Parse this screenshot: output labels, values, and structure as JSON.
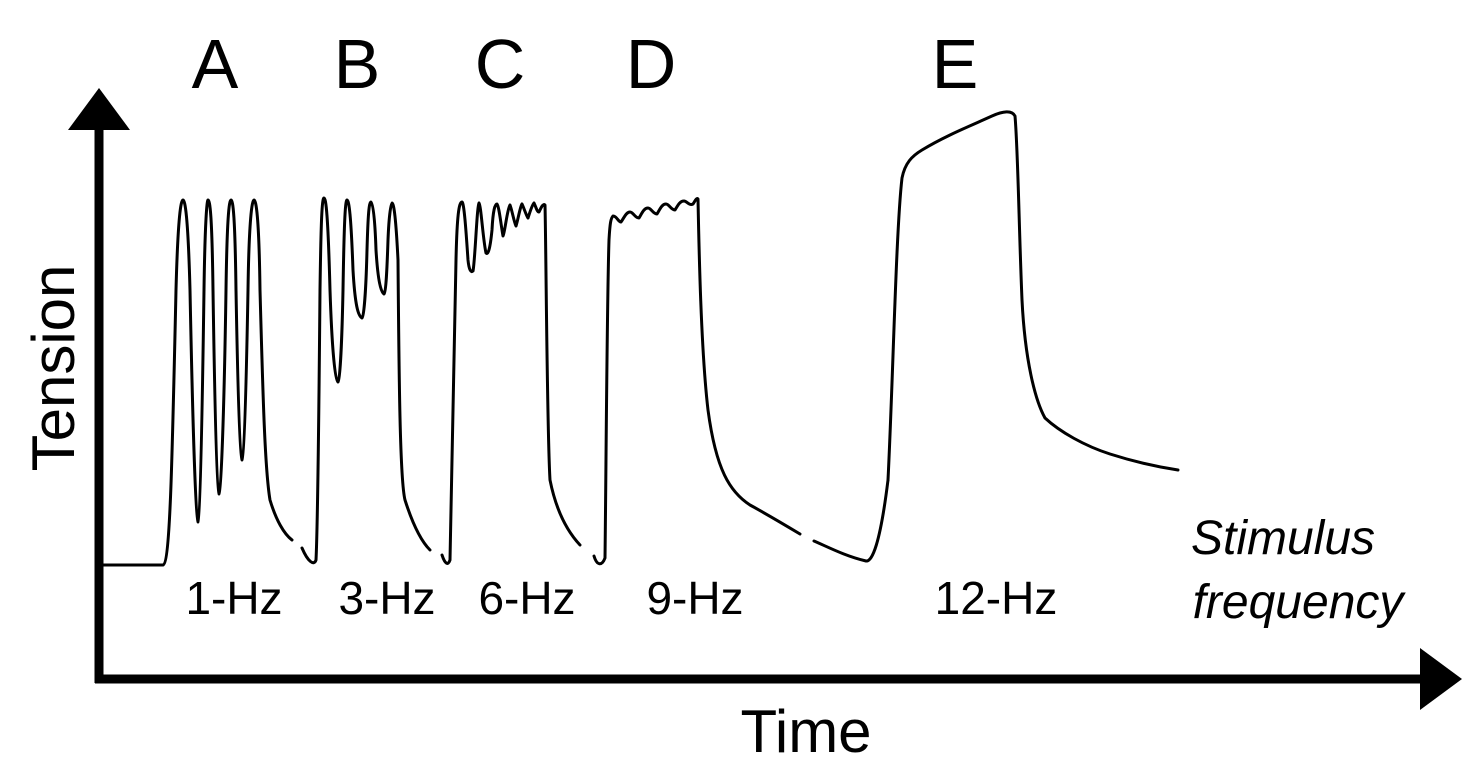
{
  "panels": [
    {
      "letter": "A",
      "frequency": "1-Hz"
    },
    {
      "letter": "B",
      "frequency": "3-Hz"
    },
    {
      "letter": "C",
      "frequency": "6-Hz"
    },
    {
      "letter": "D",
      "frequency": "9-Hz"
    },
    {
      "letter": "E",
      "frequency": "12-Hz"
    }
  ],
  "axes": {
    "y_label": "Tension",
    "x_label": "Time"
  },
  "stimulus_label": {
    "line1": "Stimulus",
    "line2": "frequency"
  },
  "colors": {
    "ink": "#000000",
    "background": "#ffffff"
  }
}
